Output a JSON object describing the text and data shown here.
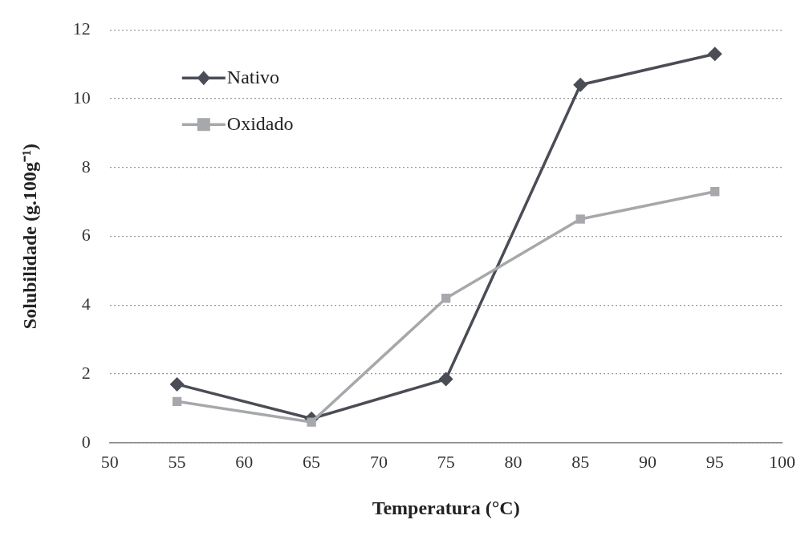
{
  "chart_data": {
    "type": "line",
    "xlabel": "Temperatura (°C)",
    "ylabel": "Solubilidade (g.100g⁻¹)",
    "x": [
      55,
      65,
      75,
      85,
      95
    ],
    "series": [
      {
        "name": "Nativo",
        "color": "#4a4d55",
        "marker": "diamond",
        "values": [
          1.7,
          0.7,
          1.85,
          10.4,
          11.3
        ]
      },
      {
        "name": "Oxidado",
        "color": "#a6a8ab",
        "marker": "square",
        "values": [
          1.2,
          0.6,
          4.2,
          6.5,
          7.3
        ]
      }
    ],
    "xlim": [
      50,
      100
    ],
    "xticks": [
      50,
      55,
      60,
      65,
      70,
      75,
      80,
      85,
      90,
      95,
      100
    ],
    "ylim": [
      0,
      12
    ],
    "yticks": [
      0,
      2,
      4,
      6,
      8,
      10,
      12
    ],
    "grid": "y",
    "legend": "top left",
    "line_style": "solid"
  }
}
